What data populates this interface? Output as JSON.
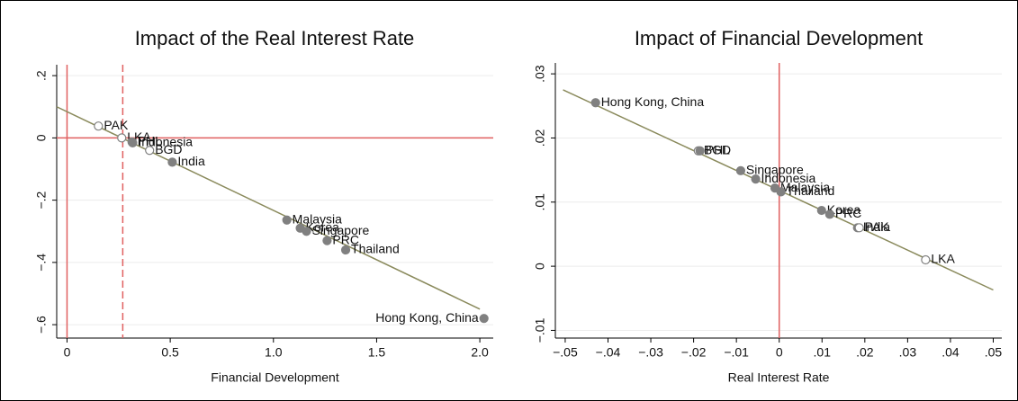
{
  "chart_data": [
    {
      "type": "scatter",
      "title": "Impact of the Real Interest Rate",
      "x_label": "Financial Development",
      "xlim": [
        -0.05,
        2.065
      ],
      "ylim": [
        -0.643,
        0.235
      ],
      "xticks": [
        0,
        0.5,
        {
          "value": 1,
          "label": "1.0"
        },
        {
          "value": 1.5,
          "label": "1.5"
        },
        {
          "value": 2,
          "label": "2.0"
        }
      ],
      "yticks": [
        {
          "value": 0.2,
          "label": ".2"
        },
        0,
        {
          "value": -0.2,
          "label": "−.2"
        },
        {
          "value": -0.4,
          "label": "−.4"
        },
        {
          "value": -0.6,
          "label": "−.6"
        }
      ],
      "grid": true,
      "color": "#808080",
      "labels": [
        "PAK",
        "LKA",
        "PHL",
        "Indonesia",
        "BGD",
        "India",
        "Malaysia",
        "Korea",
        "Singapore",
        "PRC",
        "Thailand",
        "Hong Kong, China"
      ],
      "x": [
        0.152,
        0.265,
        0.315,
        0.318,
        0.4,
        0.51,
        1.065,
        1.13,
        1.16,
        1.26,
        1.35,
        2.02
      ],
      "values": [
        0.038,
        0.0,
        -0.013,
        -0.016,
        -0.04,
        -0.078,
        -0.264,
        -0.29,
        -0.3,
        -0.33,
        -0.36,
        -0.58
      ],
      "markers": [
        "hollow",
        "hollow",
        "filled",
        "filled",
        "hollow",
        "filled",
        "filled",
        "filled",
        "filled",
        "filled",
        "filled",
        "filled"
      ],
      "fit": {
        "x": [
          -0.05,
          2.0
        ],
        "values": [
          0.1,
          -0.55
        ],
        "color": "#8a8a5c"
      },
      "ref_color": "#e06060",
      "vlines": [
        0,
        0.27
      ],
      "vline_styles": [
        "solid",
        "dashed"
      ],
      "hlines": [
        0
      ]
    },
    {
      "type": "scatter",
      "title": "Impact of Financial Development",
      "x_label": "Real Interest Rate",
      "xlim": [
        -0.0523,
        0.052
      ],
      "ylim": [
        -0.0112,
        0.0317
      ],
      "xticks": [
        {
          "value": -0.05,
          "label": "−.05"
        },
        {
          "value": -0.04,
          "label": "−.04"
        },
        {
          "value": -0.03,
          "label": "−.03"
        },
        {
          "value": -0.02,
          "label": "−.02"
        },
        {
          "value": -0.01,
          "label": "−.01"
        },
        0,
        {
          "value": 0.01,
          "label": ".01"
        },
        {
          "value": 0.02,
          "label": ".02"
        },
        {
          "value": 0.03,
          "label": ".03"
        },
        {
          "value": 0.04,
          "label": ".04"
        },
        {
          "value": 0.05,
          "label": ".05"
        }
      ],
      "yticks": [
        {
          "value": 0.03,
          "label": ".03"
        },
        {
          "value": 0.02,
          "label": ".02"
        },
        {
          "value": 0.01,
          "label": ".01"
        },
        0,
        {
          "value": -0.01,
          "label": "−.01"
        }
      ],
      "grid": true,
      "color": "#808080",
      "labels": [
        "Hong Kong, China",
        "BGD",
        "PHL",
        "Singapore",
        "Indonesia",
        "Malaysia",
        "Thailand",
        "Korea",
        "PRC",
        "India",
        "PAK",
        "LKA"
      ],
      "x": [
        -0.0429,
        -0.0189,
        -0.0185,
        -0.009,
        -0.0055,
        -0.001,
        0.0004,
        0.0099,
        0.0118,
        0.0183,
        0.0187,
        0.0342
      ],
      "values": [
        0.0255,
        0.018,
        0.018,
        0.0149,
        0.0136,
        0.0122,
        0.0116,
        0.0087,
        0.0081,
        0.006,
        0.006,
        0.001
      ],
      "markers": [
        "filled",
        "hollow",
        "filled",
        "filled",
        "filled",
        "filled",
        "filled",
        "filled",
        "filled",
        "filled",
        "hollow",
        "hollow"
      ],
      "fit": {
        "x": [
          -0.0505,
          0.05
        ],
        "values": [
          0.0275,
          -0.0037
        ],
        "color": "#8a8a5c"
      },
      "ref_color": "#e06060",
      "vlines": [
        0
      ],
      "vline_styles": [
        "solid"
      ],
      "hlines": []
    }
  ]
}
